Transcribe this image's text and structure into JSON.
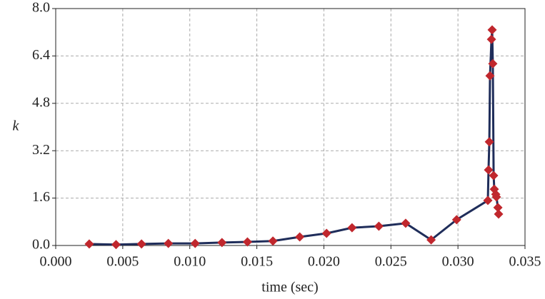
{
  "chart_data": {
    "type": "line",
    "xlabel": "time (sec)",
    "ylabel": "k",
    "x": [
      0.0025,
      0.0045,
      0.0064,
      0.0084,
      0.0104,
      0.0124,
      0.0143,
      0.0162,
      0.0182,
      0.0202,
      0.0221,
      0.0241,
      0.0261,
      0.028,
      0.0299,
      0.03223,
      0.03228,
      0.03234,
      0.03239,
      0.0325,
      0.03255,
      0.0326,
      0.03266,
      0.03271,
      0.03282,
      0.03287,
      0.03298,
      0.03303
    ],
    "series": [
      {
        "color": "#1f2d5a",
        "marker_color": "#c0272d",
        "values": [
          0.05,
          0.03,
          0.05,
          0.07,
          0.07,
          0.1,
          0.12,
          0.15,
          0.29,
          0.41,
          0.6,
          0.65,
          0.75,
          0.19,
          0.87,
          1.52,
          2.55,
          3.5,
          5.73,
          6.96,
          7.28,
          6.14,
          2.36,
          1.9,
          1.73,
          1.64,
          1.28,
          1.06
        ]
      }
    ],
    "xlim": [
      0,
      0.035
    ],
    "xticks": [
      {
        "value": 0,
        "label": "0.000"
      },
      0.005,
      {
        "value": 0.01,
        "label": "0.010"
      },
      0.015,
      {
        "value": 0.02,
        "label": "0.020"
      },
      0.025,
      {
        "value": 0.03,
        "label": "0.030"
      },
      0.035
    ],
    "ylim": [
      0,
      8
    ],
    "yticks": [
      {
        "value": 0,
        "label": "0.0"
      },
      1.6,
      3.2,
      4.8,
      6.4,
      {
        "value": 8,
        "label": "8.0"
      }
    ],
    "grid": true
  }
}
